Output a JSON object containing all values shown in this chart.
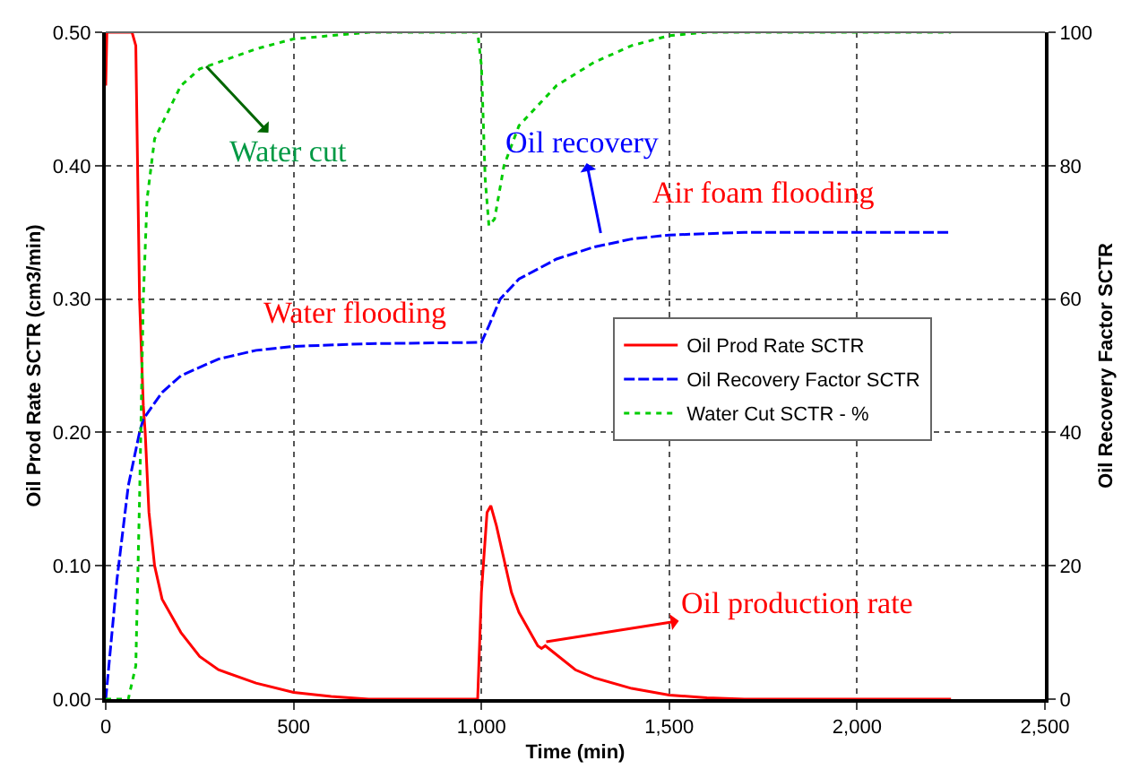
{
  "chart_data": {
    "type": "line",
    "xlabel": "Time (min)",
    "ylabel": "Oil Prod Rate SCTR (cm3/min)",
    "y2label": "Oil Recovery Factor SCTR",
    "xlim": [
      0,
      2500
    ],
    "xticks": [
      0,
      500,
      {
        "value": 1000,
        "label": "1,000"
      },
      {
        "value": 1500,
        "label": "1,500"
      },
      {
        "value": 2000,
        "label": "2,000"
      },
      {
        "value": 2500,
        "label": "2,500"
      }
    ],
    "ylim": [
      0,
      0.5
    ],
    "yticks": [
      {
        "value": 0,
        "label": "0.00"
      },
      {
        "value": 0.1,
        "label": "0.10"
      },
      {
        "value": 0.2,
        "label": "0.20"
      },
      {
        "value": 0.3,
        "label": "0.30"
      },
      {
        "value": 0.4,
        "label": "0.40"
      },
      {
        "value": 0.5,
        "label": "0.50"
      }
    ],
    "y2lim": [
      0,
      100
    ],
    "y2ticks": [
      0,
      20,
      40,
      60,
      80,
      100
    ],
    "grid": true,
    "legend": "right",
    "marker": "none",
    "series": [
      {
        "name": "Oil Prod Rate SCTR",
        "color": "#ff0000",
        "line_style": "solid",
        "x": [
          0,
          3,
          70,
          80,
          90,
          100,
          105,
          115,
          130,
          150,
          200,
          250,
          300,
          400,
          500,
          600,
          700,
          990,
          1000,
          1015,
          1025,
          1040,
          1080,
          1100,
          1150,
          1160,
          1170,
          1250,
          1300,
          1400,
          1500,
          1600,
          1700,
          2250
        ],
        "values": [
          0.46,
          0.5,
          0.5,
          0.49,
          0.3,
          0.22,
          0.2,
          0.14,
          0.1,
          0.075,
          0.05,
          0.032,
          0.022,
          0.012,
          0.005,
          0.002,
          0,
          0,
          0.08,
          0.14,
          0.145,
          0.13,
          0.08,
          0.065,
          0.04,
          0.038,
          0.04,
          0.022,
          0.016,
          0.008,
          0.003,
          0.001,
          0,
          0
        ]
      },
      {
        "name": "Oil Recovery Factor SCTR",
        "color": "#0000ff",
        "line_style": "dashed",
        "axis": "y2",
        "x": [
          0,
          30,
          60,
          90,
          100,
          150,
          200,
          300,
          400,
          500,
          700,
          1000,
          1020,
          1050,
          1100,
          1200,
          1300,
          1400,
          1500,
          1700,
          2250
        ],
        "values": [
          0,
          18,
          32,
          40,
          42,
          46,
          48.5,
          51,
          52.3,
          52.9,
          53.3,
          53.5,
          56,
          60,
          63,
          66,
          67.8,
          69,
          69.6,
          70,
          70
        ]
      },
      {
        "name": "Water Cut SCTR - %",
        "color": "#00cc00",
        "line_style": "dotted",
        "axis": "y2",
        "x": [
          0,
          60,
          80,
          90,
          100,
          110,
          130,
          200,
          250,
          400,
          500,
          700,
          990,
          1000,
          1010,
          1020,
          1035,
          1060,
          1100,
          1200,
          1300,
          1400,
          1500,
          1600,
          2250
        ],
        "values": [
          0,
          0,
          5,
          30,
          60,
          75,
          84,
          92,
          94.5,
          97.5,
          99,
          100,
          100,
          95,
          78,
          71,
          72,
          80,
          86,
          92,
          95.5,
          98,
          99.5,
          100,
          100
        ]
      }
    ],
    "annotations": [
      "Water cut",
      "Oil recovery",
      "Oil production rate",
      "Water flooding",
      "Air foam flooding"
    ]
  }
}
